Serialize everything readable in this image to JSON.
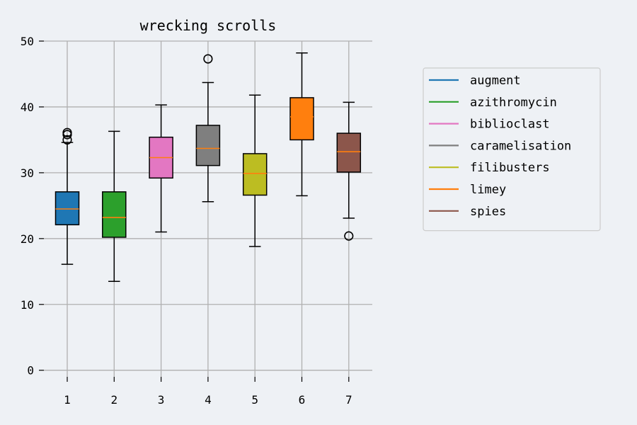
{
  "chart_data": {
    "type": "boxplot",
    "title": "wrecking scrolls",
    "xlabel": "",
    "ylabel": "",
    "ylim": [
      -1,
      50
    ],
    "yticks": [
      0,
      10,
      20,
      30,
      40,
      50
    ],
    "categories": [
      "1",
      "2",
      "3",
      "4",
      "5",
      "6",
      "7"
    ],
    "grid": true,
    "legend_position": "right",
    "median_color": "#ff7f0e",
    "series": [
      {
        "name": "augment",
        "color": "#1f77b4",
        "whisker_low": 16.1,
        "q1": 22.1,
        "median": 24.5,
        "q3": 27.1,
        "whisker_high": 34.6,
        "outliers": [
          35.0,
          35.8,
          36.1
        ]
      },
      {
        "name": "azithromycin",
        "color": "#2ca02c",
        "whisker_low": 13.5,
        "q1": 20.2,
        "median": 23.2,
        "q3": 27.1,
        "whisker_high": 36.3,
        "outliers": []
      },
      {
        "name": "biblioclast",
        "color": "#e377c2",
        "whisker_low": 21.0,
        "q1": 29.2,
        "median": 32.3,
        "q3": 35.4,
        "whisker_high": 40.3,
        "outliers": []
      },
      {
        "name": "caramelisation",
        "color": "#7f7f7f",
        "whisker_low": 25.6,
        "q1": 31.1,
        "median": 33.7,
        "q3": 37.2,
        "whisker_high": 43.7,
        "outliers": [
          47.3
        ]
      },
      {
        "name": "filibusters",
        "color": "#bcbd22",
        "whisker_low": 18.8,
        "q1": 26.6,
        "median": 29.9,
        "q3": 32.9,
        "whisker_high": 41.8,
        "outliers": []
      },
      {
        "name": "limey",
        "color": "#ff7f0e",
        "whisker_low": 26.5,
        "q1": 35.0,
        "median": 38.5,
        "q3": 41.4,
        "whisker_high": 48.2,
        "outliers": []
      },
      {
        "name": "spies",
        "color": "#8c564b",
        "whisker_low": 23.1,
        "q1": 30.1,
        "median": 33.2,
        "q3": 36.0,
        "whisker_high": 40.7,
        "outliers": [
          20.4
        ]
      }
    ]
  }
}
